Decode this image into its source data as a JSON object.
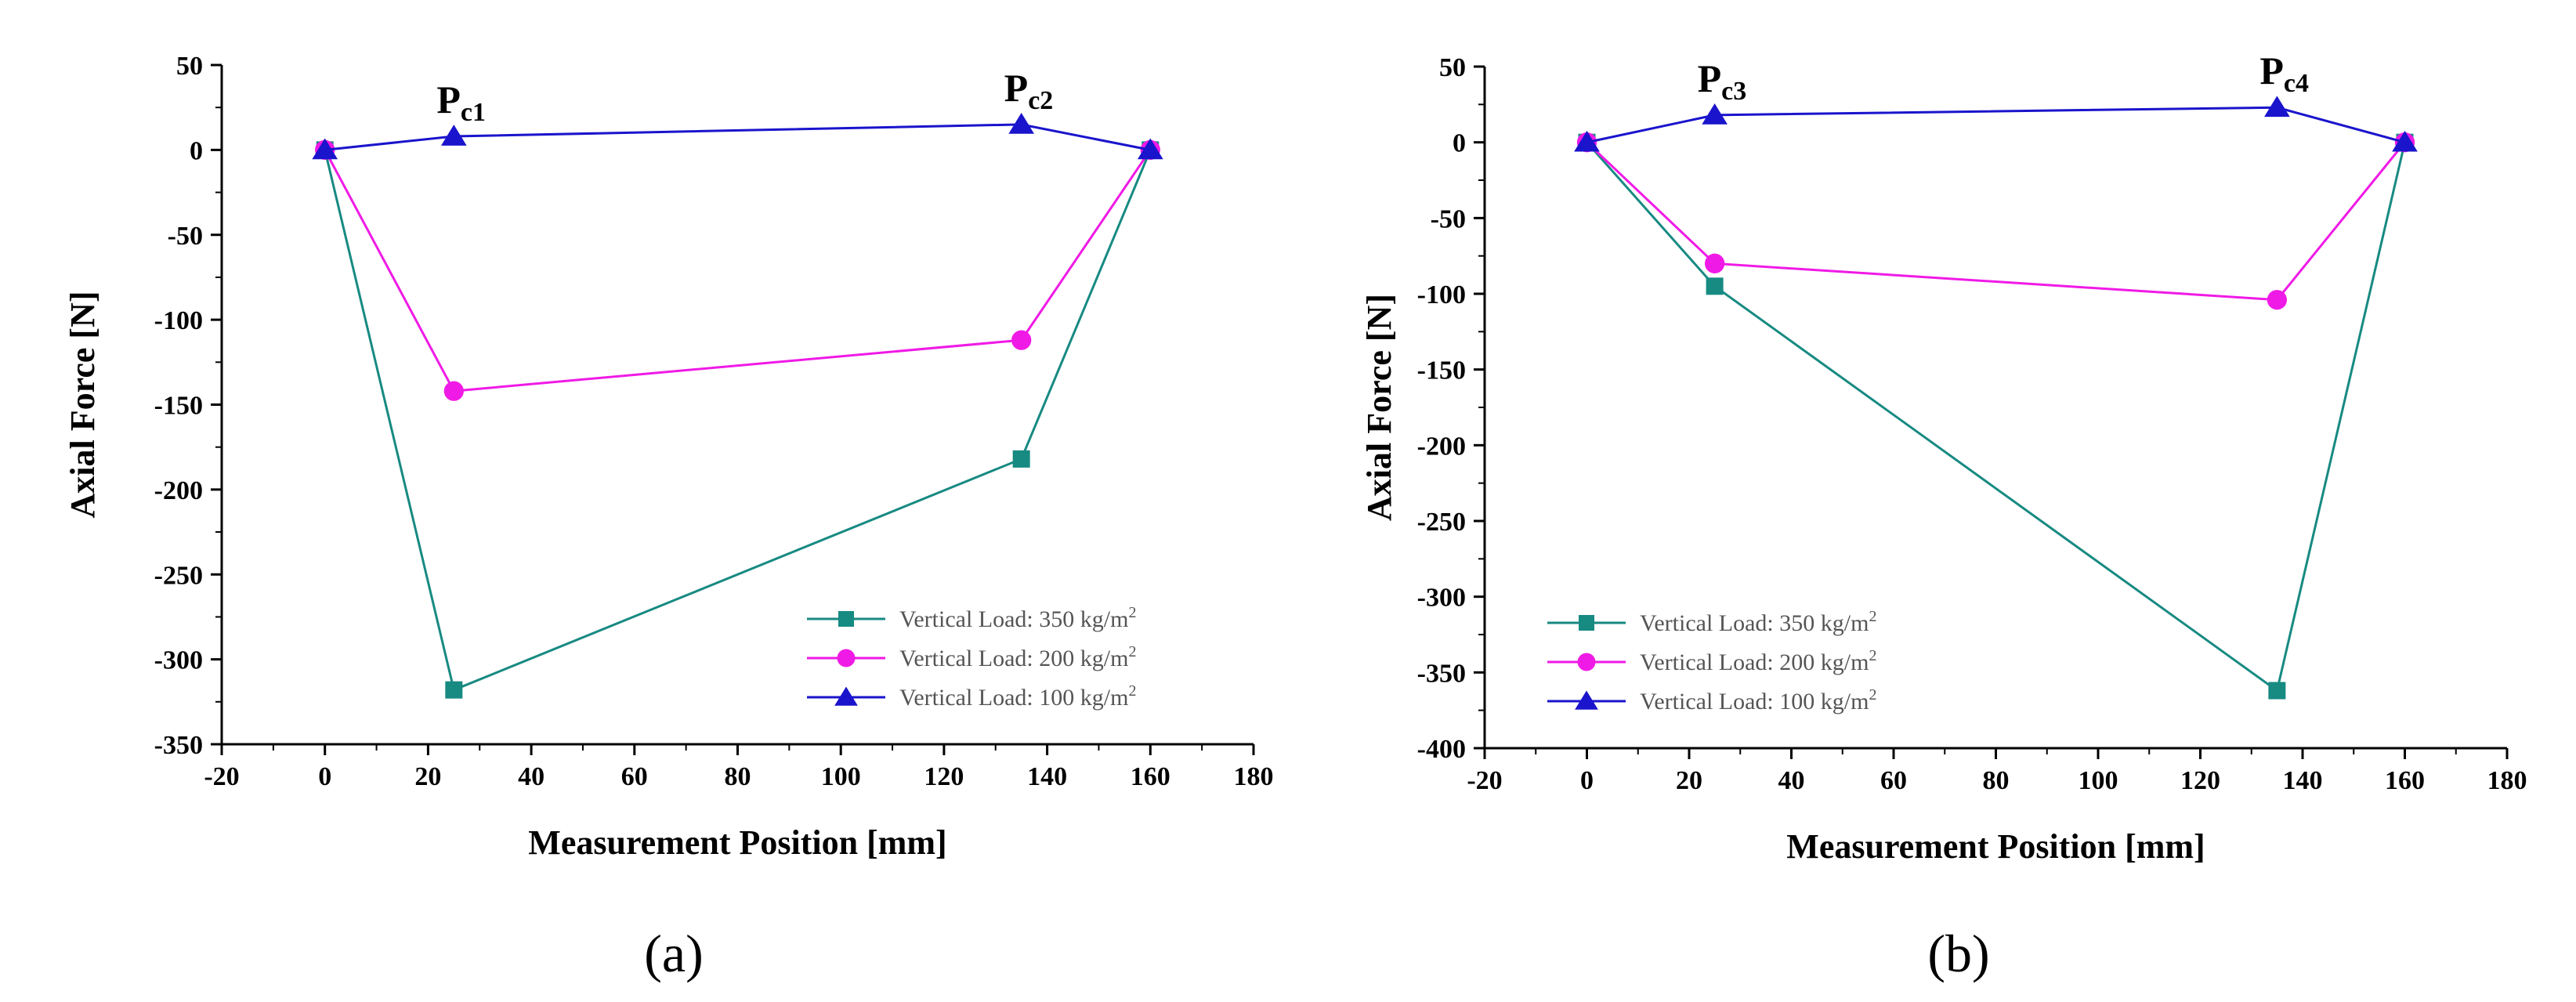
{
  "colors": {
    "s350": "#178a82",
    "s200": "#f01ae6",
    "s100": "#1a14cc",
    "axis": "#000000"
  },
  "chart_data": [
    {
      "type": "line",
      "panel_label": "(a)",
      "xlabel": "Measurement Position [mm]",
      "ylabel": "Axial Force [N]",
      "xlim": [
        -20,
        180
      ],
      "ylim": [
        -350,
        50
      ],
      "xticks": [
        -20,
        0,
        20,
        40,
        60,
        80,
        100,
        120,
        140,
        160,
        180
      ],
      "yticks": [
        50,
        0,
        -50,
        -100,
        -150,
        -200,
        -250,
        -300,
        -350
      ],
      "legend_position": "lower-right",
      "series": [
        {
          "name": "Vertical Load: 350 kg/m",
          "sup": "2",
          "color": "#178a82",
          "marker": "square",
          "x": [
            0,
            25,
            135,
            160
          ],
          "y": [
            0,
            -318,
            -182,
            0
          ]
        },
        {
          "name": "Vertical Load: 200 kg/m",
          "sup": "2",
          "color": "#f01ae6",
          "marker": "circle",
          "x": [
            0,
            25,
            135,
            160
          ],
          "y": [
            0,
            -142,
            -112,
            0
          ]
        },
        {
          "name": "Vertical Load: 100 kg/m",
          "sup": "2",
          "color": "#1a14cc",
          "marker": "triangle",
          "x": [
            0,
            25,
            135,
            160
          ],
          "y": [
            0,
            8,
            15,
            0
          ]
        }
      ],
      "annotations": [
        {
          "main": "P",
          "sub": "c1",
          "x": 25,
          "y": 8
        },
        {
          "main": "P",
          "sub": "c2",
          "x": 135,
          "y": 15
        }
      ]
    },
    {
      "type": "line",
      "panel_label": "(b)",
      "xlabel": "Measurement Position [mm]",
      "ylabel": "Axial Force [N]",
      "xlim": [
        -20,
        180
      ],
      "ylim": [
        -400,
        50
      ],
      "xticks": [
        -20,
        0,
        20,
        40,
        60,
        80,
        100,
        120,
        140,
        160,
        180
      ],
      "yticks": [
        50,
        0,
        -50,
        -100,
        -150,
        -200,
        -250,
        -300,
        -350,
        -400
      ],
      "legend_position": "lower-left",
      "series": [
        {
          "name": "Vertical Load: 350 kg/m",
          "sup": "2",
          "color": "#178a82",
          "marker": "square",
          "x": [
            0,
            25,
            135,
            160
          ],
          "y": [
            0,
            -95,
            -362,
            0
          ]
        },
        {
          "name": "Vertical Load: 200 kg/m",
          "sup": "2",
          "color": "#f01ae6",
          "marker": "circle",
          "x": [
            0,
            25,
            135,
            160
          ],
          "y": [
            0,
            -80,
            -104,
            0
          ]
        },
        {
          "name": "Vertical Load: 100 kg/m",
          "sup": "2",
          "color": "#1a14cc",
          "marker": "triangle",
          "x": [
            0,
            25,
            135,
            160
          ],
          "y": [
            0,
            18,
            23,
            0
          ]
        }
      ],
      "annotations": [
        {
          "main": "P",
          "sub": "c3",
          "x": 25,
          "y": 18
        },
        {
          "main": "P",
          "sub": "c4",
          "x": 135,
          "y": 23
        }
      ]
    }
  ]
}
